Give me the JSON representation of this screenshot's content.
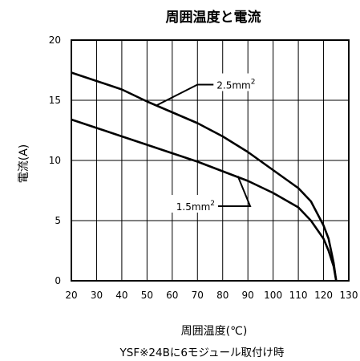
{
  "chart_data": {
    "type": "line",
    "title": "周囲温度と電流",
    "xlabel": "周囲温度(℃)",
    "ylabel": "電流(A)",
    "footnote": "YSF※24Bに6モジュール取付け時",
    "xlim": [
      20,
      130
    ],
    "ylim": [
      0,
      20
    ],
    "x_ticks": [
      "20",
      "30",
      "40",
      "50",
      "60",
      "70",
      "80",
      "90",
      "100",
      "110",
      "120",
      "130"
    ],
    "y_ticks": [
      "0",
      "5",
      "10",
      "15",
      "20"
    ],
    "grid": true,
    "series": [
      {
        "name": "2.5mm²",
        "label_base": "2.5mm",
        "label_sup": "2",
        "points": [
          [
            20,
            17.3
          ],
          [
            30,
            16.6
          ],
          [
            40,
            15.9
          ],
          [
            50,
            14.9
          ],
          [
            60,
            14.0
          ],
          [
            70,
            13.1
          ],
          [
            80,
            12.0
          ],
          [
            90,
            10.7
          ],
          [
            100,
            9.2
          ],
          [
            110,
            7.7
          ],
          [
            115,
            6.6
          ],
          [
            120,
            4.6
          ],
          [
            122,
            3.5
          ],
          [
            124,
            1.5
          ],
          [
            125,
            0.0
          ]
        ]
      },
      {
        "name": "1.5mm²",
        "label_base": "1.5mm",
        "label_sup": "2",
        "points": [
          [
            20,
            13.4
          ],
          [
            30,
            12.7
          ],
          [
            40,
            12.0
          ],
          [
            50,
            11.3
          ],
          [
            60,
            10.6
          ],
          [
            70,
            9.9
          ],
          [
            80,
            9.1
          ],
          [
            90,
            8.3
          ],
          [
            100,
            7.3
          ],
          [
            110,
            6.1
          ],
          [
            115,
            5.0
          ],
          [
            120,
            3.5
          ],
          [
            122,
            2.5
          ],
          [
            124,
            1.2
          ],
          [
            125,
            0.0
          ]
        ]
      }
    ],
    "annotations": [
      {
        "series": 0,
        "at": [
          54,
          14.6
        ],
        "text_at": [
          70,
          16.3
        ]
      },
      {
        "series": 1,
        "at": [
          86,
          8.7
        ],
        "text_at": [
          75,
          6.2
        ]
      }
    ]
  }
}
